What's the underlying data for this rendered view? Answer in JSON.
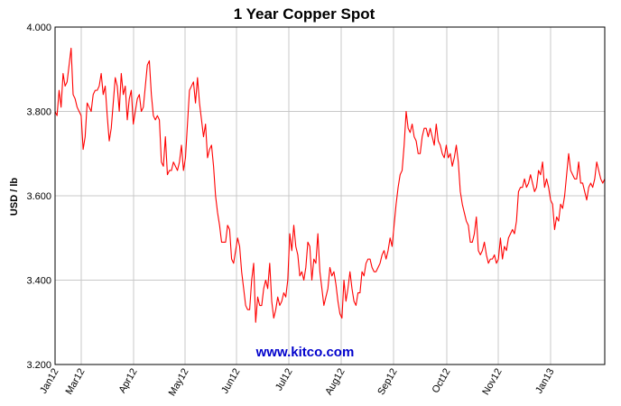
{
  "chart_data": {
    "type": "line",
    "title": "1 Year Copper Spot",
    "xlabel": "",
    "ylabel": "USD / lb",
    "ylim": [
      3.2,
      4.0
    ],
    "yticks": [
      "3.200",
      "3.400",
      "3.600",
      "3.800",
      "4.000"
    ],
    "x_tick_labels": [
      "Jan12",
      "Mar12",
      "Apr12",
      "May12",
      "Jun12",
      "Jul12",
      "Aug12",
      "Sep12",
      "Oct12",
      "Nov12",
      "Jan13"
    ],
    "grid": true,
    "line_color": "#ff0000",
    "watermark": "www.kitco.com",
    "watermark_color": "#0000cc",
    "series": [
      {
        "values": [
          3.8,
          3.79,
          3.85,
          3.81,
          3.89,
          3.86,
          3.87,
          3.91,
          3.95,
          3.84,
          3.83,
          3.81,
          3.8,
          3.79,
          3.71,
          3.74,
          3.82,
          3.81,
          3.8,
          3.84,
          3.85,
          3.85,
          3.86,
          3.89,
          3.84,
          3.86,
          3.79,
          3.73,
          3.76,
          3.82,
          3.88,
          3.86,
          3.8,
          3.89,
          3.84,
          3.86,
          3.78,
          3.83,
          3.85,
          3.77,
          3.8,
          3.83,
          3.84,
          3.8,
          3.81,
          3.86,
          3.91,
          3.92,
          3.84,
          3.79,
          3.78,
          3.79,
          3.78,
          3.68,
          3.67,
          3.74,
          3.65,
          3.66,
          3.66,
          3.68,
          3.67,
          3.66,
          3.68,
          3.72,
          3.66,
          3.69,
          3.77,
          3.85,
          3.86,
          3.87,
          3.82,
          3.88,
          3.82,
          3.78,
          3.74,
          3.77,
          3.69,
          3.71,
          3.72,
          3.67,
          3.6,
          3.56,
          3.53,
          3.49,
          3.49,
          3.49,
          3.53,
          3.52,
          3.45,
          3.44,
          3.47,
          3.5,
          3.48,
          3.42,
          3.38,
          3.34,
          3.33,
          3.33,
          3.4,
          3.44,
          3.3,
          3.36,
          3.34,
          3.34,
          3.38,
          3.4,
          3.38,
          3.44,
          3.35,
          3.31,
          3.33,
          3.36,
          3.34,
          3.35,
          3.37,
          3.36,
          3.4,
          3.51,
          3.47,
          3.53,
          3.48,
          3.46,
          3.41,
          3.42,
          3.4,
          3.43,
          3.49,
          3.48,
          3.4,
          3.45,
          3.44,
          3.51,
          3.42,
          3.38,
          3.34,
          3.36,
          3.38,
          3.43,
          3.41,
          3.42,
          3.39,
          3.35,
          3.32,
          3.31,
          3.4,
          3.35,
          3.38,
          3.42,
          3.38,
          3.35,
          3.34,
          3.37,
          3.37,
          3.42,
          3.41,
          3.44,
          3.45,
          3.45,
          3.43,
          3.42,
          3.42,
          3.43,
          3.44,
          3.46,
          3.47,
          3.45,
          3.47,
          3.5,
          3.48,
          3.53,
          3.58,
          3.62,
          3.65,
          3.66,
          3.72,
          3.8,
          3.76,
          3.75,
          3.77,
          3.74,
          3.73,
          3.7,
          3.7,
          3.74,
          3.76,
          3.76,
          3.74,
          3.76,
          3.74,
          3.72,
          3.77,
          3.73,
          3.72,
          3.7,
          3.69,
          3.72,
          3.69,
          3.7,
          3.67,
          3.69,
          3.72,
          3.68,
          3.61,
          3.58,
          3.56,
          3.54,
          3.53,
          3.49,
          3.49,
          3.51,
          3.55,
          3.47,
          3.46,
          3.47,
          3.49,
          3.46,
          3.44,
          3.45,
          3.45,
          3.46,
          3.44,
          3.45,
          3.5,
          3.45,
          3.48,
          3.47,
          3.5,
          3.51,
          3.52,
          3.51,
          3.54,
          3.61,
          3.62,
          3.62,
          3.64,
          3.62,
          3.63,
          3.65,
          3.63,
          3.61,
          3.62,
          3.66,
          3.65,
          3.68,
          3.62,
          3.64,
          3.62,
          3.59,
          3.58,
          3.52,
          3.55,
          3.54,
          3.58,
          3.57,
          3.6,
          3.65,
          3.7,
          3.66,
          3.65,
          3.64,
          3.64,
          3.68,
          3.63,
          3.63,
          3.61,
          3.59,
          3.62,
          3.63,
          3.62,
          3.64,
          3.68,
          3.66,
          3.64,
          3.63,
          3.64
        ]
      }
    ]
  }
}
